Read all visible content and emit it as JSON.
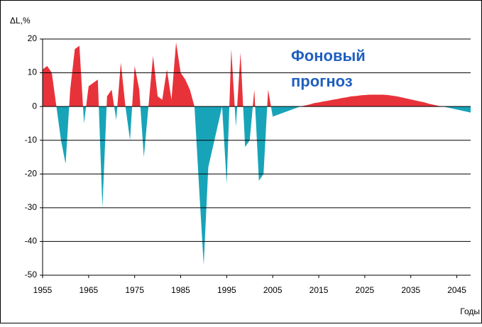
{
  "chart_data": {
    "type": "area",
    "y_label": "ΔL,%",
    "x_label": "Годы",
    "annotation": [
      "Фоновый",
      "прогноз"
    ],
    "x": [
      1955,
      1956,
      1957,
      1958,
      1959,
      1960,
      1961,
      1962,
      1963,
      1964,
      1965,
      1966,
      1967,
      1968,
      1969,
      1970,
      1971,
      1972,
      1973,
      1974,
      1975,
      1976,
      1977,
      1978,
      1979,
      1980,
      1981,
      1982,
      1983,
      1984,
      1985,
      1986,
      1987,
      1988,
      1989,
      1990,
      1991,
      1992,
      1993,
      1994,
      1995,
      1996,
      1997,
      1998,
      1999,
      2000,
      2001,
      2002,
      2003,
      2004,
      2005,
      2006,
      2007,
      2008,
      2009,
      2010,
      2011,
      2012,
      2013,
      2014,
      2015,
      2016,
      2017,
      2018,
      2019,
      2020,
      2021,
      2022,
      2023,
      2024,
      2025,
      2026,
      2027,
      2028,
      2029,
      2030,
      2031,
      2032,
      2033,
      2034,
      2035,
      2036,
      2037,
      2038,
      2039,
      2040,
      2041,
      2042,
      2043,
      2044,
      2045,
      2046,
      2047,
      2048
    ],
    "values": [
      11,
      12,
      10,
      0,
      -10,
      -17,
      5,
      17,
      18,
      -5,
      6,
      7,
      8,
      -30,
      3,
      5,
      -4,
      13,
      0,
      -10,
      12,
      5,
      -15,
      0,
      15,
      3,
      2,
      11,
      2,
      19,
      10,
      8,
      5,
      0,
      -24,
      -47,
      -18,
      -12,
      -6,
      0,
      -23,
      17,
      -6,
      16,
      -12,
      -10,
      5,
      -22,
      -20,
      5,
      -3,
      -2.5,
      -2,
      -1.5,
      -1,
      -0.5,
      0,
      0.3,
      0.6,
      1,
      1.2,
      1.5,
      1.7,
      2,
      2.2,
      2.5,
      2.7,
      3,
      3.1,
      3.3,
      3.4,
      3.5,
      3.5,
      3.5,
      3.5,
      3.4,
      3.2,
      3,
      2.7,
      2.4,
      2.1,
      1.8,
      1.5,
      1.2,
      0.8,
      0.5,
      0.2,
      0,
      -0.3,
      -0.6,
      -0.9,
      -1.2,
      -1.5,
      -1.8
    ],
    "positive_color": "#e8323a",
    "negative_color": "#18a4b8",
    "xlim": [
      1955,
      2048
    ],
    "xticks": [
      1955,
      1965,
      1975,
      1985,
      1995,
      2005,
      2015,
      2025,
      2035,
      2045
    ],
    "ylim": [
      -50,
      20
    ],
    "yticks": [
      20,
      10,
      0,
      -10,
      -20,
      -30,
      -40,
      -50
    ],
    "grid": true
  }
}
